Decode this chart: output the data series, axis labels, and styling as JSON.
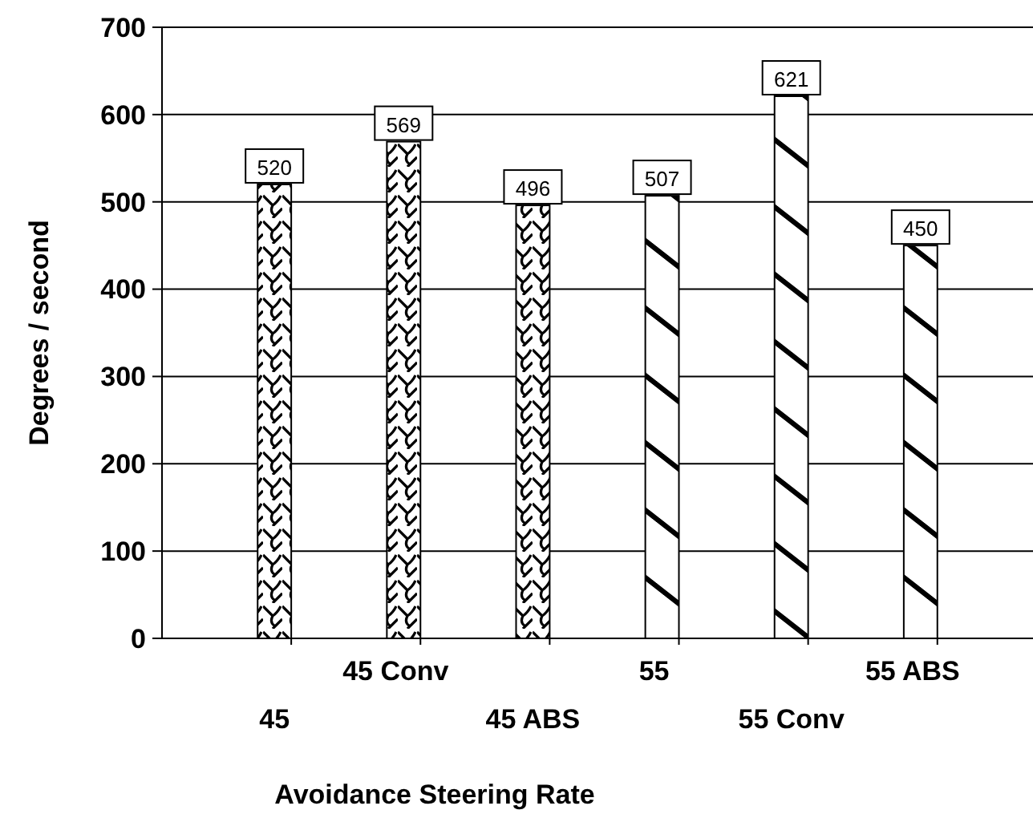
{
  "chart_data": {
    "type": "bar",
    "xlabel": "Avoidance Steering Rate",
    "ylabel": "Degrees / second",
    "categories": [
      "45",
      "45 Conv",
      "45 ABS",
      "55",
      "55 Conv",
      "55 ABS"
    ],
    "series": [
      {
        "color": "#000000",
        "values": [
          520,
          569,
          496,
          null,
          null,
          null
        ]
      },
      {
        "color": "#000000",
        "values": [
          null,
          null,
          null,
          507,
          621,
          450
        ]
      }
    ],
    "ylim": [
      0,
      700
    ],
    "yticks": [
      0,
      100,
      200,
      300,
      400,
      500,
      600,
      700
    ],
    "grid": "y",
    "data_labels": true
  }
}
